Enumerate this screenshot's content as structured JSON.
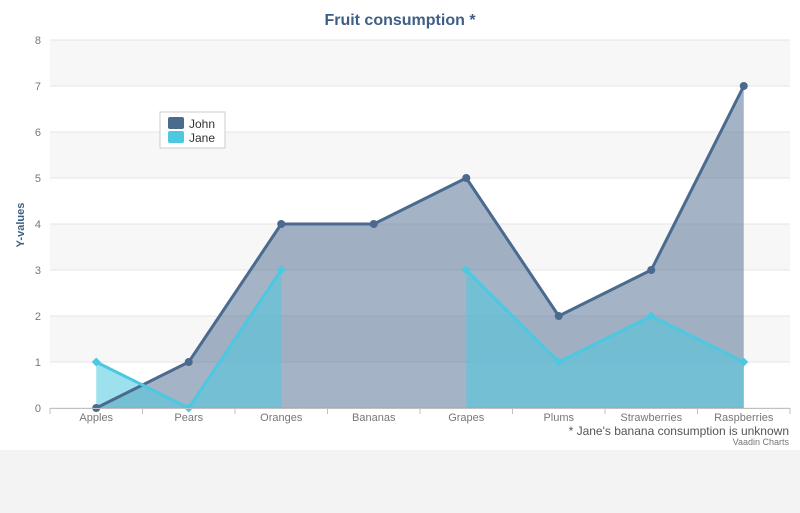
{
  "chart_data": {
    "type": "area",
    "title": "Fruit consumption *",
    "xlabel": "",
    "ylabel": "Y-values",
    "categories": [
      "Apples",
      "Pears",
      "Oranges",
      "Bananas",
      "Grapes",
      "Plums",
      "Strawberries",
      "Raspberries"
    ],
    "ylim": [
      0,
      8
    ],
    "yticks": [
      0,
      1,
      2,
      3,
      4,
      5,
      6,
      7,
      8
    ],
    "grid": true,
    "legend_position": "top-left",
    "series": [
      {
        "name": "John",
        "values": [
          0,
          1,
          4,
          4,
          5,
          2,
          3,
          7
        ],
        "color": "#4a6a8e",
        "marker": "circle"
      },
      {
        "name": "Jane",
        "values": [
          1,
          0,
          3,
          null,
          3,
          1,
          2,
          1
        ],
        "color": "#4cc8e0",
        "marker": "diamond"
      }
    ],
    "footnote": "* Jane's banana consumption is unknown",
    "credits": "Vaadin Charts"
  }
}
